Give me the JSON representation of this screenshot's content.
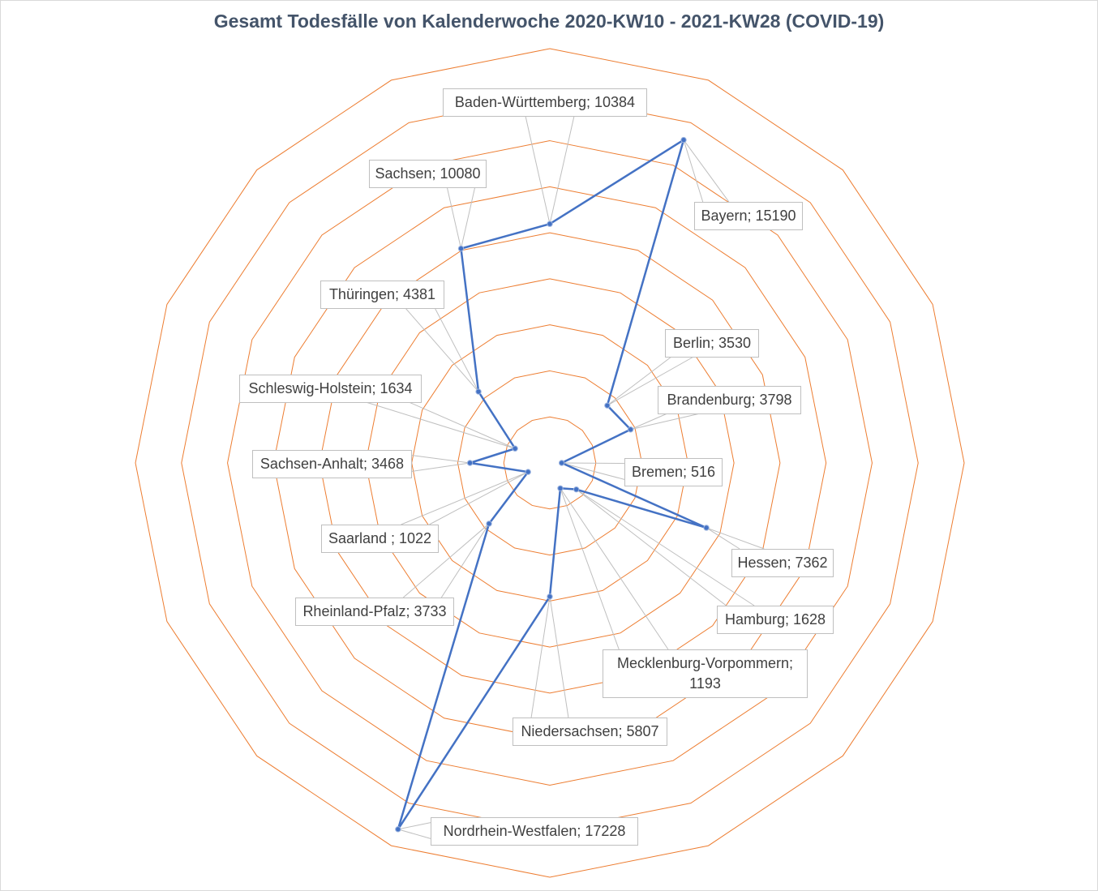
{
  "chart_data": {
    "type": "radar",
    "title": "Gesamt Todesfälle von Kalenderwoche 2020-KW10 - 2021-KW28 (COVID-19)",
    "categories": [
      "Baden-Württemberg",
      "Bayern",
      "Berlin",
      "Brandenburg",
      "Bremen",
      "Hessen",
      "Hamburg",
      "Mecklenburg-Vorpommern",
      "Niedersachsen",
      "Nordrhein-Westfalen",
      "Rheinland-Pfalz",
      "Saarland",
      "Sachsen-Anhalt",
      "Schleswig-Holstein",
      "Thüringen",
      "Sachsen"
    ],
    "series": [
      {
        "name": "Todesfälle",
        "values": [
          10384,
          15190,
          3530,
          3798,
          516,
          7362,
          1628,
          1193,
          5807,
          17228,
          3733,
          1022,
          3468,
          1634,
          4381,
          10080
        ]
      }
    ],
    "data_labels": [
      "Baden-Württemberg; 10384",
      "Bayern; 15190",
      "Berlin; 3530",
      "Brandenburg; 3798",
      "Bremen; 516",
      "Hessen; 7362",
      "Hamburg; 1628",
      "Mecklenburg-Vorpommern; 1193",
      "Niedersachsen; 5807",
      "Nordrhein-Westfalen; 17228",
      "Rheinland-Pfalz; 3733",
      "Saarland ; 1022",
      "Sachsen-Anhalt; 3468",
      "Schleswig-Holstein; 1634",
      "Thüringen; 4381",
      "Sachsen; 10080"
    ],
    "rlim": [
      0,
      18000
    ],
    "grid_step": 2000,
    "grid": true,
    "colors": {
      "series": "#4472c4",
      "grid": "#ed7d31",
      "title": "#44546a"
    }
  }
}
